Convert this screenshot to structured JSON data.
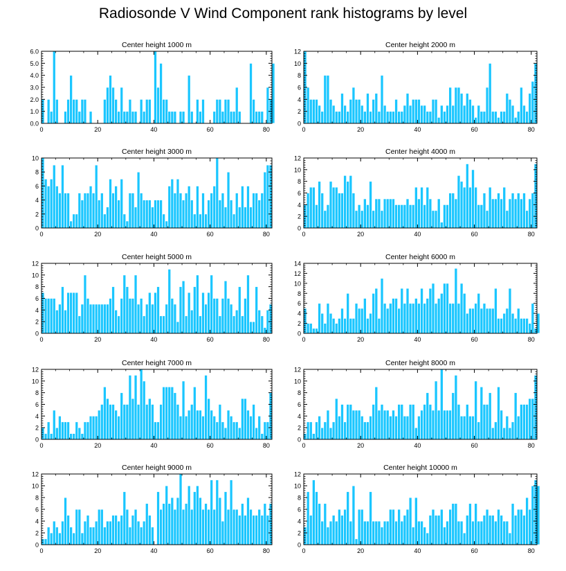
{
  "title": "Radiosonde V Wind Component rank histograms by level",
  "colors": {
    "bar_fill": "#1AC6FF",
    "bar_edge": "#FFFFFF",
    "axis": "#000000"
  },
  "chart_data": [
    {
      "type": "bar",
      "title": "Center height 1000 m",
      "xlim": [
        0,
        82
      ],
      "ylim": [
        0,
        6
      ],
      "xticks": [
        "0",
        "20",
        "40",
        "60",
        "80"
      ],
      "yticks": [
        "0.0",
        "1.0",
        "2.0",
        "3.0",
        "4.0",
        "5.0",
        "6.0"
      ],
      "values": [
        2,
        0,
        2,
        1,
        6,
        2,
        0,
        0,
        1,
        2,
        4,
        2,
        2,
        1,
        2,
        2,
        0,
        1,
        0,
        0,
        0,
        0,
        2,
        3,
        4,
        3,
        2,
        1,
        3,
        1,
        1,
        2,
        1,
        1,
        0,
        2,
        1,
        2,
        2,
        0,
        6,
        3,
        5,
        2,
        2,
        1,
        1,
        1,
        0,
        1,
        1,
        0,
        4,
        1,
        0,
        2,
        1,
        2,
        0,
        0,
        0,
        1,
        2,
        2,
        1,
        2,
        2,
        1,
        1,
        3,
        1,
        0,
        0,
        0,
        5,
        2,
        1,
        1,
        1,
        0,
        3,
        2,
        5
      ]
    },
    {
      "type": "bar",
      "title": "Center height 2000 m",
      "xlim": [
        0,
        82
      ],
      "ylim": [
        0,
        12
      ],
      "xticks": [
        "0",
        "20",
        "40",
        "60",
        "80"
      ],
      "yticks": [
        "0",
        "2",
        "4",
        "6",
        "8",
        "10",
        "12"
      ],
      "values": [
        12,
        6,
        4,
        4,
        4,
        3,
        2,
        8,
        8,
        4,
        3,
        2,
        2,
        5,
        3,
        2,
        4,
        6,
        4,
        4,
        3,
        2,
        5,
        2,
        4,
        5,
        2,
        8,
        3,
        2,
        2,
        2,
        4,
        2,
        2,
        3,
        5,
        3,
        4,
        4,
        4,
        3,
        3,
        2,
        2,
        4,
        4,
        1,
        3,
        2,
        3,
        6,
        3,
        6,
        6,
        5,
        3,
        5,
        4,
        3,
        1,
        3,
        2,
        2,
        6,
        10,
        2,
        2,
        1,
        2,
        2,
        5,
        4,
        3,
        1,
        2,
        6,
        3,
        2,
        5,
        7,
        10
      ]
    },
    {
      "type": "bar",
      "title": "Center height 3000 m",
      "xlim": [
        0,
        82
      ],
      "ylim": [
        0,
        10
      ],
      "xticks": [
        "0",
        "20",
        "40",
        "60",
        "80"
      ],
      "yticks": [
        "0",
        "2",
        "4",
        "6",
        "8",
        "10"
      ],
      "values": [
        10,
        7,
        6,
        7,
        9,
        6,
        5,
        9,
        5,
        5,
        1,
        2,
        2,
        5,
        4,
        5,
        5,
        6,
        5,
        9,
        4,
        5,
        2,
        3,
        7,
        5,
        6,
        4,
        7,
        2,
        1,
        5,
        5,
        3,
        8,
        5,
        4,
        4,
        4,
        3,
        4,
        4,
        4,
        2,
        1,
        6,
        7,
        5,
        7,
        5,
        4,
        5,
        6,
        4,
        2,
        6,
        2,
        5,
        2,
        4,
        5,
        6,
        10,
        4,
        5,
        3,
        8,
        4,
        2,
        5,
        3,
        6,
        3,
        6,
        3,
        5,
        5,
        4,
        5,
        8,
        9,
        9
      ]
    },
    {
      "type": "bar",
      "title": "Center height 4000 m",
      "xlim": [
        0,
        82
      ],
      "ylim": [
        0,
        12
      ],
      "xticks": [
        "0",
        "20",
        "40",
        "60",
        "80"
      ],
      "yticks": [
        "0",
        "2",
        "4",
        "6",
        "8",
        "10",
        "12"
      ],
      "values": [
        4,
        6,
        7,
        7,
        4,
        8,
        6,
        3,
        4,
        8,
        7,
        7,
        6,
        6,
        9,
        8,
        9,
        6,
        3,
        4,
        3,
        5,
        4,
        8,
        3,
        5,
        5,
        3,
        5,
        5,
        5,
        5,
        4,
        4,
        4,
        4,
        5,
        4,
        4,
        7,
        5,
        7,
        4,
        7,
        5,
        3,
        3,
        5,
        1,
        4,
        4,
        6,
        6,
        5,
        9,
        8,
        7,
        11,
        7,
        10,
        7,
        4,
        4,
        6,
        3,
        7,
        5,
        5,
        6,
        5,
        7,
        3,
        5,
        6,
        5,
        6,
        5,
        6,
        3,
        5,
        6,
        11
      ]
    },
    {
      "type": "bar",
      "title": "Center height 5000 m",
      "xlim": [
        0,
        82
      ],
      "ylim": [
        0,
        12
      ],
      "xticks": [
        "0",
        "20",
        "40",
        "60",
        "80"
      ],
      "yticks": [
        "0",
        "2",
        "4",
        "6",
        "8",
        "10",
        "12"
      ],
      "values": [
        7,
        6,
        6,
        6,
        6,
        4,
        5,
        8,
        4,
        7,
        7,
        7,
        7,
        3,
        5,
        10,
        6,
        5,
        5,
        5,
        5,
        5,
        5,
        5,
        6,
        8,
        4,
        3,
        6,
        10,
        8,
        6,
        6,
        10,
        5,
        6,
        3,
        5,
        7,
        5,
        7,
        8,
        3,
        3,
        5,
        11,
        6,
        5,
        2,
        8,
        9,
        3,
        7,
        4,
        8,
        10,
        3,
        7,
        5,
        7,
        10,
        6,
        6,
        3,
        6,
        9,
        6,
        5,
        3,
        4,
        8,
        3,
        6,
        10,
        2,
        2,
        8,
        4,
        3,
        1,
        4,
        5
      ]
    },
    {
      "type": "bar",
      "title": "Center height 6000 m",
      "xlim": [
        0,
        82
      ],
      "ylim": [
        0,
        14
      ],
      "xticks": [
        "0",
        "20",
        "40",
        "60",
        "80"
      ],
      "yticks": [
        "0",
        "2",
        "4",
        "6",
        "8",
        "10",
        "12",
        "14"
      ],
      "values": [
        5,
        2,
        2,
        1,
        1,
        6,
        4,
        2,
        6,
        4,
        3,
        2,
        3,
        5,
        3,
        8,
        3,
        3,
        6,
        5,
        5,
        7,
        3,
        4,
        8,
        9,
        3,
        11,
        6,
        5,
        6,
        7,
        7,
        5,
        9,
        6,
        9,
        6,
        6,
        7,
        6,
        9,
        6,
        7,
        9,
        10,
        6,
        7,
        8,
        10,
        10,
        6,
        6,
        13,
        6,
        10,
        8,
        4,
        5,
        5,
        6,
        8,
        5,
        6,
        5,
        5,
        5,
        9,
        3,
        3,
        4,
        5,
        9,
        4,
        3,
        5,
        3,
        3,
        3,
        2,
        6,
        1,
        4
      ]
    },
    {
      "type": "bar",
      "title": "Center height 7000 m",
      "xlim": [
        0,
        82
      ],
      "ylim": [
        0,
        12
      ],
      "xticks": [
        "0",
        "20",
        "40",
        "60",
        "80"
      ],
      "yticks": [
        "0",
        "2",
        "4",
        "6",
        "8",
        "10",
        "12"
      ],
      "values": [
        2,
        1,
        3,
        1,
        5,
        2,
        4,
        3,
        3,
        3,
        1,
        1,
        3,
        2,
        1,
        3,
        3,
        4,
        4,
        4,
        5,
        6,
        9,
        7,
        6,
        6,
        5,
        4,
        8,
        6,
        6,
        11,
        7,
        11,
        6,
        12,
        10,
        6,
        7,
        6,
        3,
        3,
        6,
        9,
        9,
        9,
        9,
        8,
        6,
        4,
        10,
        4,
        5,
        6,
        9,
        5,
        5,
        4,
        11,
        7,
        5,
        4,
        3,
        6,
        3,
        2,
        5,
        4,
        3,
        3,
        2,
        7,
        7,
        5,
        4,
        6,
        2,
        4,
        1,
        3,
        3,
        8
      ]
    },
    {
      "type": "bar",
      "title": "Center height 8000 m",
      "xlim": [
        0,
        82
      ],
      "ylim": [
        0,
        12
      ],
      "xticks": [
        "0",
        "20",
        "40",
        "60",
        "80"
      ],
      "yticks": [
        "0",
        "2",
        "4",
        "6",
        "8",
        "10",
        "12"
      ],
      "values": [
        1,
        3,
        3,
        1,
        3,
        4,
        2,
        3,
        5,
        2,
        3,
        7,
        4,
        6,
        3,
        6,
        6,
        5,
        5,
        5,
        4,
        3,
        3,
        4,
        6,
        9,
        5,
        6,
        5,
        5,
        4,
        5,
        4,
        6,
        6,
        4,
        4,
        6,
        6,
        2,
        4,
        5,
        6,
        8,
        6,
        5,
        10,
        5,
        12,
        5,
        5,
        5,
        8,
        11,
        6,
        4,
        4,
        6,
        4,
        4,
        10,
        3,
        9,
        6,
        6,
        8,
        2,
        3,
        9,
        5,
        2,
        4,
        2,
        3,
        8,
        4,
        6,
        6,
        6,
        7,
        7,
        11
      ]
    },
    {
      "type": "bar",
      "title": "Center height 9000 m",
      "xlim": [
        0,
        82
      ],
      "ylim": [
        0,
        12
      ],
      "xticks": [
        "0",
        "20",
        "40",
        "60",
        "80"
      ],
      "yticks": [
        "0",
        "2",
        "4",
        "6",
        "8",
        "10",
        "12"
      ],
      "values": [
        1,
        1,
        3,
        2,
        4,
        3,
        2,
        4,
        8,
        5,
        3,
        2,
        6,
        6,
        2,
        4,
        5,
        3,
        3,
        4,
        6,
        6,
        3,
        4,
        4,
        5,
        5,
        4,
        5,
        9,
        6,
        3,
        5,
        6,
        4,
        3,
        4,
        7,
        5,
        3,
        0,
        9,
        6,
        7,
        10,
        7,
        8,
        6,
        8,
        12,
        6,
        7,
        10,
        6,
        9,
        10,
        8,
        6,
        7,
        6,
        11,
        6,
        11,
        8,
        4,
        9,
        6,
        11,
        6,
        6,
        5,
        7,
        5,
        8,
        6,
        5,
        5,
        6,
        5,
        7,
        5,
        7
      ]
    },
    {
      "type": "bar",
      "title": "Center height 10000 m",
      "xlim": [
        0,
        82
      ],
      "ylim": [
        0,
        12
      ],
      "xticks": [
        "0",
        "20",
        "40",
        "60",
        "80"
      ],
      "yticks": [
        "0",
        "2",
        "4",
        "6",
        "8",
        "10",
        "12"
      ],
      "values": [
        3,
        9,
        5,
        11,
        9,
        7,
        4,
        7,
        3,
        4,
        5,
        4,
        6,
        5,
        6,
        9,
        4,
        10,
        1,
        6,
        6,
        4,
        4,
        9,
        4,
        4,
        4,
        3,
        4,
        4,
        6,
        6,
        4,
        6,
        4,
        5,
        6,
        8,
        3,
        8,
        4,
        4,
        3,
        2,
        5,
        6,
        5,
        5,
        6,
        3,
        4,
        6,
        7,
        7,
        4,
        4,
        2,
        5,
        7,
        4,
        7,
        4,
        4,
        5,
        6,
        5,
        5,
        4,
        6,
        5,
        4,
        4,
        2,
        7,
        5,
        6,
        6,
        5,
        8,
        6,
        10,
        11,
        10
      ]
    }
  ]
}
